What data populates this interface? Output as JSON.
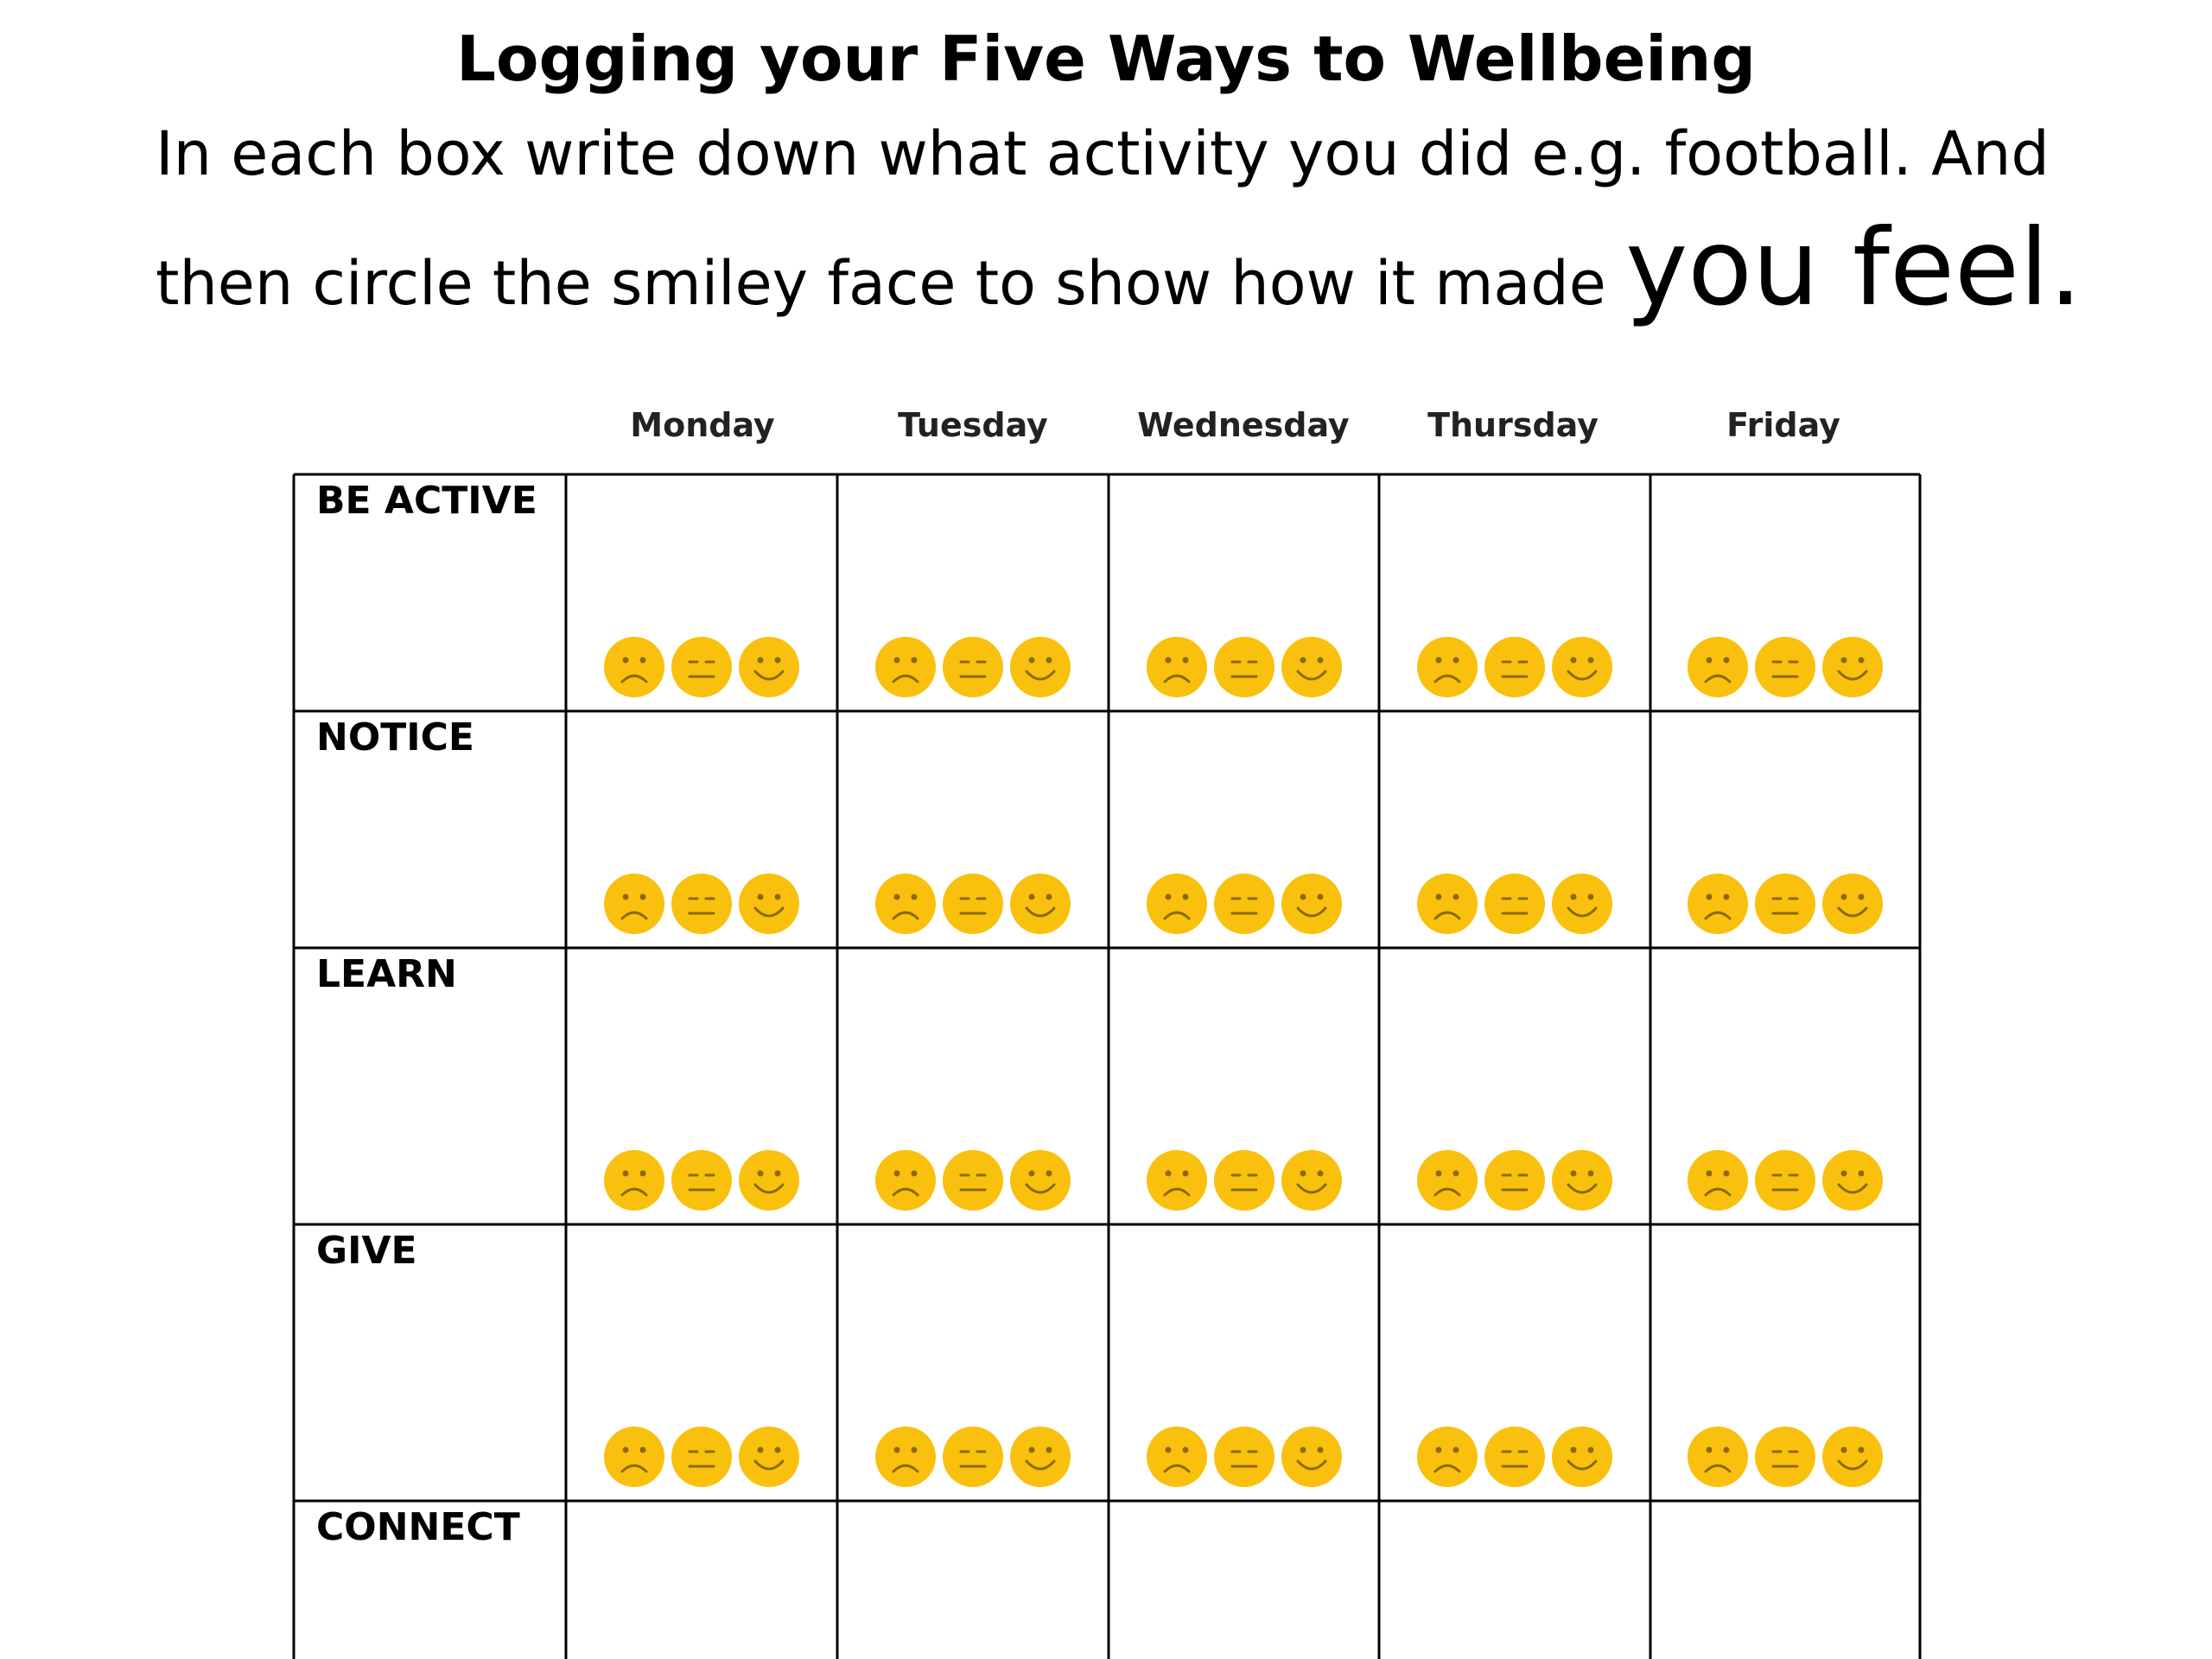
{
  "title": "Logging your Five Ways to Wellbeing",
  "instructions": {
    "line1": "In each box write down what activity you did e.g. football. And",
    "line2": "then circle the smiley face to show how it made",
    "line2_emphasis": "you feel."
  },
  "days": [
    "Monday",
    "Tuesday",
    "Wednesday",
    "Thursday",
    "Friday"
  ],
  "rows": [
    "BE ACTIVE",
    "NOTICE",
    "LEARN",
    "GIVE",
    "CONNECT"
  ],
  "face_options": [
    "sad-face-icon",
    "neutral-face-icon",
    "happy-face-icon"
  ],
  "colors": {
    "face_fill": "#F9C10E",
    "face_feature": "#8A6A00",
    "grid_line": "#000000"
  }
}
